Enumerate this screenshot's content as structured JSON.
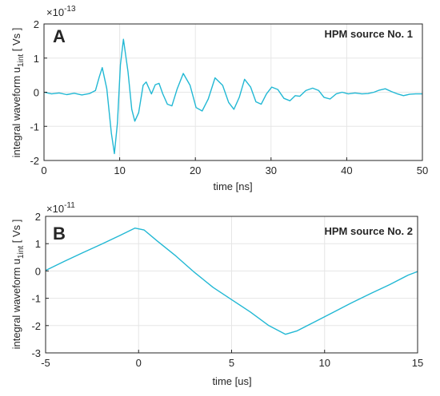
{
  "chart_data": [
    {
      "type": "line",
      "panel_label": "A",
      "title": "HPM source No. 1",
      "xlabel": "time [ns]",
      "ylabel": "integral waveform u",
      "ylabel_sub": "1int",
      "ylabel_unit": " [ Vs ]",
      "y_exponent_base": "×10",
      "y_exponent": "-13",
      "xlim": [
        0,
        50
      ],
      "ylim": [
        -2,
        2
      ],
      "xticks": [
        "0",
        "10",
        "20",
        "30",
        "40",
        "50"
      ],
      "yticks": [
        "-2",
        "-1",
        "0",
        "1",
        "2"
      ],
      "grid": true,
      "color": "#22b8d4",
      "series": [
        {
          "x": [
            0,
            1,
            2,
            3,
            4,
            5,
            6,
            6.8,
            7.3,
            7.7,
            8.3,
            8.9,
            9.3,
            9.7,
            10.1,
            10.5,
            11.1,
            11.6,
            12.0,
            12.5,
            13.1,
            13.5,
            14.2,
            14.7,
            15.2,
            15.7,
            16.3,
            16.9,
            17.6,
            18.4,
            19.3,
            20.1,
            20.9,
            21.7,
            22.6,
            23.6,
            24.4,
            25.1,
            25.8,
            26.5,
            27.3,
            28.0,
            28.7,
            29.4,
            30.1,
            30.9,
            31.7,
            32.5,
            33.2,
            33.8,
            34.6,
            35.5,
            36.3,
            37.0,
            37.8,
            38.6,
            39.4,
            40.2,
            41.1,
            42.0,
            42.8,
            43.6,
            44.3,
            45.1,
            45.9,
            46.7,
            47.5,
            48.3,
            49.1,
            50
          ],
          "y": [
            0,
            -0.05,
            -0.02,
            -0.07,
            -0.03,
            -0.08,
            -0.04,
            0.05,
            0.45,
            0.72,
            0.1,
            -1.2,
            -1.8,
            -0.9,
            0.8,
            1.55,
            0.6,
            -0.5,
            -0.85,
            -0.6,
            0.2,
            0.3,
            -0.05,
            0.22,
            0.26,
            -0.05,
            -0.35,
            -0.4,
            0.1,
            0.55,
            0.2,
            -0.45,
            -0.55,
            -0.2,
            0.42,
            0.2,
            -0.3,
            -0.5,
            -0.15,
            0.38,
            0.15,
            -0.28,
            -0.35,
            -0.05,
            0.15,
            0.08,
            -0.18,
            -0.25,
            -0.1,
            -0.12,
            0.05,
            0.12,
            0.05,
            -0.15,
            -0.2,
            -0.05,
            0.0,
            -0.05,
            -0.02,
            -0.05,
            -0.04,
            0.0,
            0.06,
            0.1,
            0.02,
            -0.05,
            -0.1,
            -0.06,
            -0.05,
            -0.05
          ]
        }
      ]
    },
    {
      "type": "line",
      "panel_label": "B",
      "title": "HPM source No. 2",
      "xlabel": "time [us]",
      "ylabel": "integral waveform u",
      "ylabel_sub": "1int",
      "ylabel_unit": " [ Vs ]",
      "y_exponent_base": "×10",
      "y_exponent": "-11",
      "xlim": [
        -5,
        15
      ],
      "ylim": [
        -3,
        2
      ],
      "xticks": [
        "-5",
        "0",
        "5",
        "10",
        "15"
      ],
      "yticks": [
        "-3",
        "-2",
        "-1",
        "0",
        "1",
        "2"
      ],
      "grid": true,
      "color": "#22b8d4",
      "series": [
        {
          "x": [
            -5,
            -4,
            -3,
            -2,
            -1,
            -0.2,
            0.3,
            1,
            2,
            3,
            4,
            5,
            6,
            7,
            7.9,
            8.5,
            9.5,
            10.5,
            11.5,
            12.5,
            13.5,
            14.5,
            15
          ],
          "y": [
            0.02,
            0.35,
            0.67,
            0.98,
            1.3,
            1.57,
            1.5,
            1.1,
            0.55,
            -0.05,
            -0.6,
            -1.05,
            -1.5,
            -2.0,
            -2.32,
            -2.2,
            -1.85,
            -1.5,
            -1.15,
            -0.82,
            -0.5,
            -0.15,
            -0.02
          ]
        }
      ]
    }
  ]
}
